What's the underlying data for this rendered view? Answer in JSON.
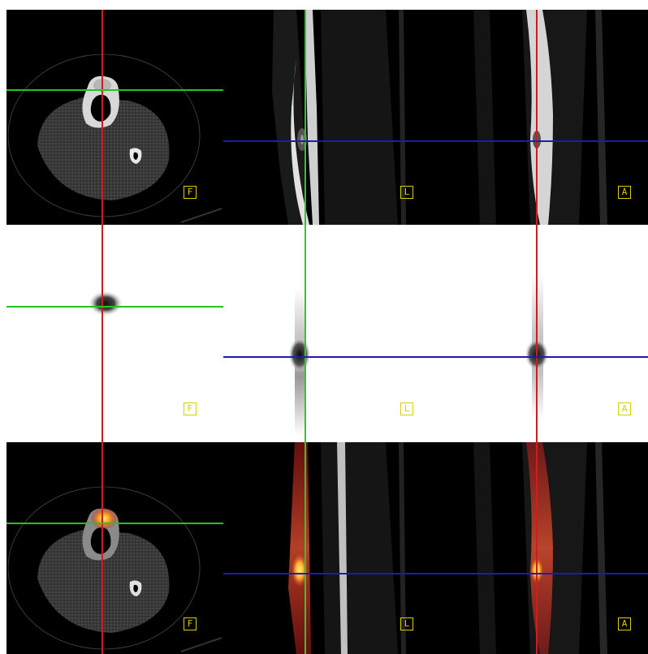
{
  "colors": {
    "crosshair_vertical": "#c8201e",
    "crosshair_horizontal_axial": "#22c41e",
    "crosshair_horizontal_longitudinal": "#1c1cb0",
    "crosshair_sagittal_vertical": "#35c42e",
    "orientation_label": "#d8d000",
    "ct_background": "#000000",
    "pet_background": "#ffffff",
    "pet_hotspot": "#2a2a2a",
    "fusion_hotspot": "#ff9a1e"
  },
  "rows": [
    {
      "name": "ct",
      "panels": [
        {
          "view": "axial",
          "orientation_label": "F"
        },
        {
          "view": "sagittal",
          "orientation_label": "L"
        },
        {
          "view": "coronal",
          "orientation_label": "A"
        }
      ]
    },
    {
      "name": "pet",
      "panels": [
        {
          "view": "axial",
          "orientation_label": "F"
        },
        {
          "view": "sagittal",
          "orientation_label": "L"
        },
        {
          "view": "coronal",
          "orientation_label": "A"
        }
      ]
    },
    {
      "name": "fused",
      "panels": [
        {
          "view": "axial",
          "orientation_label": "F"
        },
        {
          "view": "sagittal",
          "orientation_label": "L"
        },
        {
          "view": "coronal",
          "orientation_label": "A"
        }
      ]
    }
  ]
}
